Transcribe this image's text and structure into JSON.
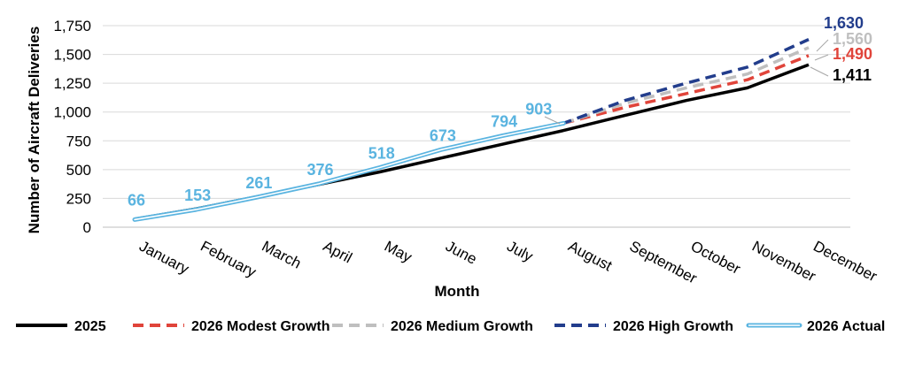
{
  "chart_data": {
    "type": "line",
    "title": "",
    "xlabel": "Month",
    "ylabel": "Number of Aircraft Deliveries",
    "ylim": [
      0,
      1750
    ],
    "yticks": [
      0,
      250,
      500,
      750,
      1000,
      1250,
      1500,
      1750
    ],
    "ytick_labels": [
      "0",
      "250",
      "500",
      "750",
      "1,000",
      "1,250",
      "1,500",
      "1,750"
    ],
    "grid": true,
    "legend_position": "bottom",
    "categories": [
      "January",
      "February",
      "March",
      "April",
      "May",
      "June",
      "July",
      "August",
      "September",
      "October",
      "November",
      "December"
    ],
    "series": [
      {
        "name": "2025",
        "color": "#000000",
        "style": "solid",
        "values": [
          70,
          160,
          265,
          370,
          480,
          600,
          720,
          840,
          970,
          1100,
          1210,
          1411
        ]
      },
      {
        "name": "2026 Modest Growth",
        "color": "#e0443a",
        "style": "dashed",
        "values": [
          null,
          null,
          null,
          null,
          null,
          null,
          null,
          903,
          1040,
          1160,
          1280,
          1490
        ]
      },
      {
        "name": "2026 Medium Growth",
        "color": "#bfbfbf",
        "style": "dashed",
        "values": [
          null,
          null,
          null,
          null,
          null,
          null,
          null,
          903,
          1075,
          1210,
          1330,
          1560
        ]
      },
      {
        "name": "2026 High Growth",
        "color": "#223d8c",
        "style": "dashed",
        "values": [
          66,
          153,
          261,
          376,
          518,
          673,
          794,
          903,
          1100,
          1250,
          1390,
          1630
        ]
      },
      {
        "name": "2026 Actual",
        "color": "#5ab4e0",
        "style": "double",
        "values": [
          66,
          153,
          261,
          376,
          518,
          673,
          794,
          903,
          null,
          null,
          null,
          null
        ]
      }
    ],
    "data_labels": [
      {
        "series": "2026 Actual",
        "category": "January",
        "value": 66,
        "text": "66",
        "color": "#5ab4e0"
      },
      {
        "series": "2026 Actual",
        "category": "February",
        "value": 153,
        "text": "153",
        "color": "#5ab4e0"
      },
      {
        "series": "2026 Actual",
        "category": "March",
        "value": 261,
        "text": "261",
        "color": "#5ab4e0"
      },
      {
        "series": "2026 Actual",
        "category": "April",
        "value": 376,
        "text": "376",
        "color": "#5ab4e0"
      },
      {
        "series": "2026 Actual",
        "category": "May",
        "value": 518,
        "text": "518",
        "color": "#5ab4e0"
      },
      {
        "series": "2026 Actual",
        "category": "June",
        "value": 673,
        "text": "673",
        "color": "#5ab4e0"
      },
      {
        "series": "2026 Actual",
        "category": "July",
        "value": 794,
        "text": "794",
        "color": "#5ab4e0"
      },
      {
        "series": "2026 Actual",
        "category": "August",
        "value": 903,
        "text": "903",
        "color": "#5ab4e0"
      },
      {
        "series": "2026 High Growth",
        "category": "December",
        "value": 1630,
        "text": "1,630",
        "color": "#223d8c"
      },
      {
        "series": "2026 Medium Growth",
        "category": "December",
        "value": 1560,
        "text": "1,560",
        "color": "#bfbfbf"
      },
      {
        "series": "2026 Modest Growth",
        "category": "December",
        "value": 1490,
        "text": "1,490",
        "color": "#e0443a"
      },
      {
        "series": "2025",
        "category": "December",
        "value": 1411,
        "text": "1,411",
        "color": "#000000"
      }
    ]
  }
}
